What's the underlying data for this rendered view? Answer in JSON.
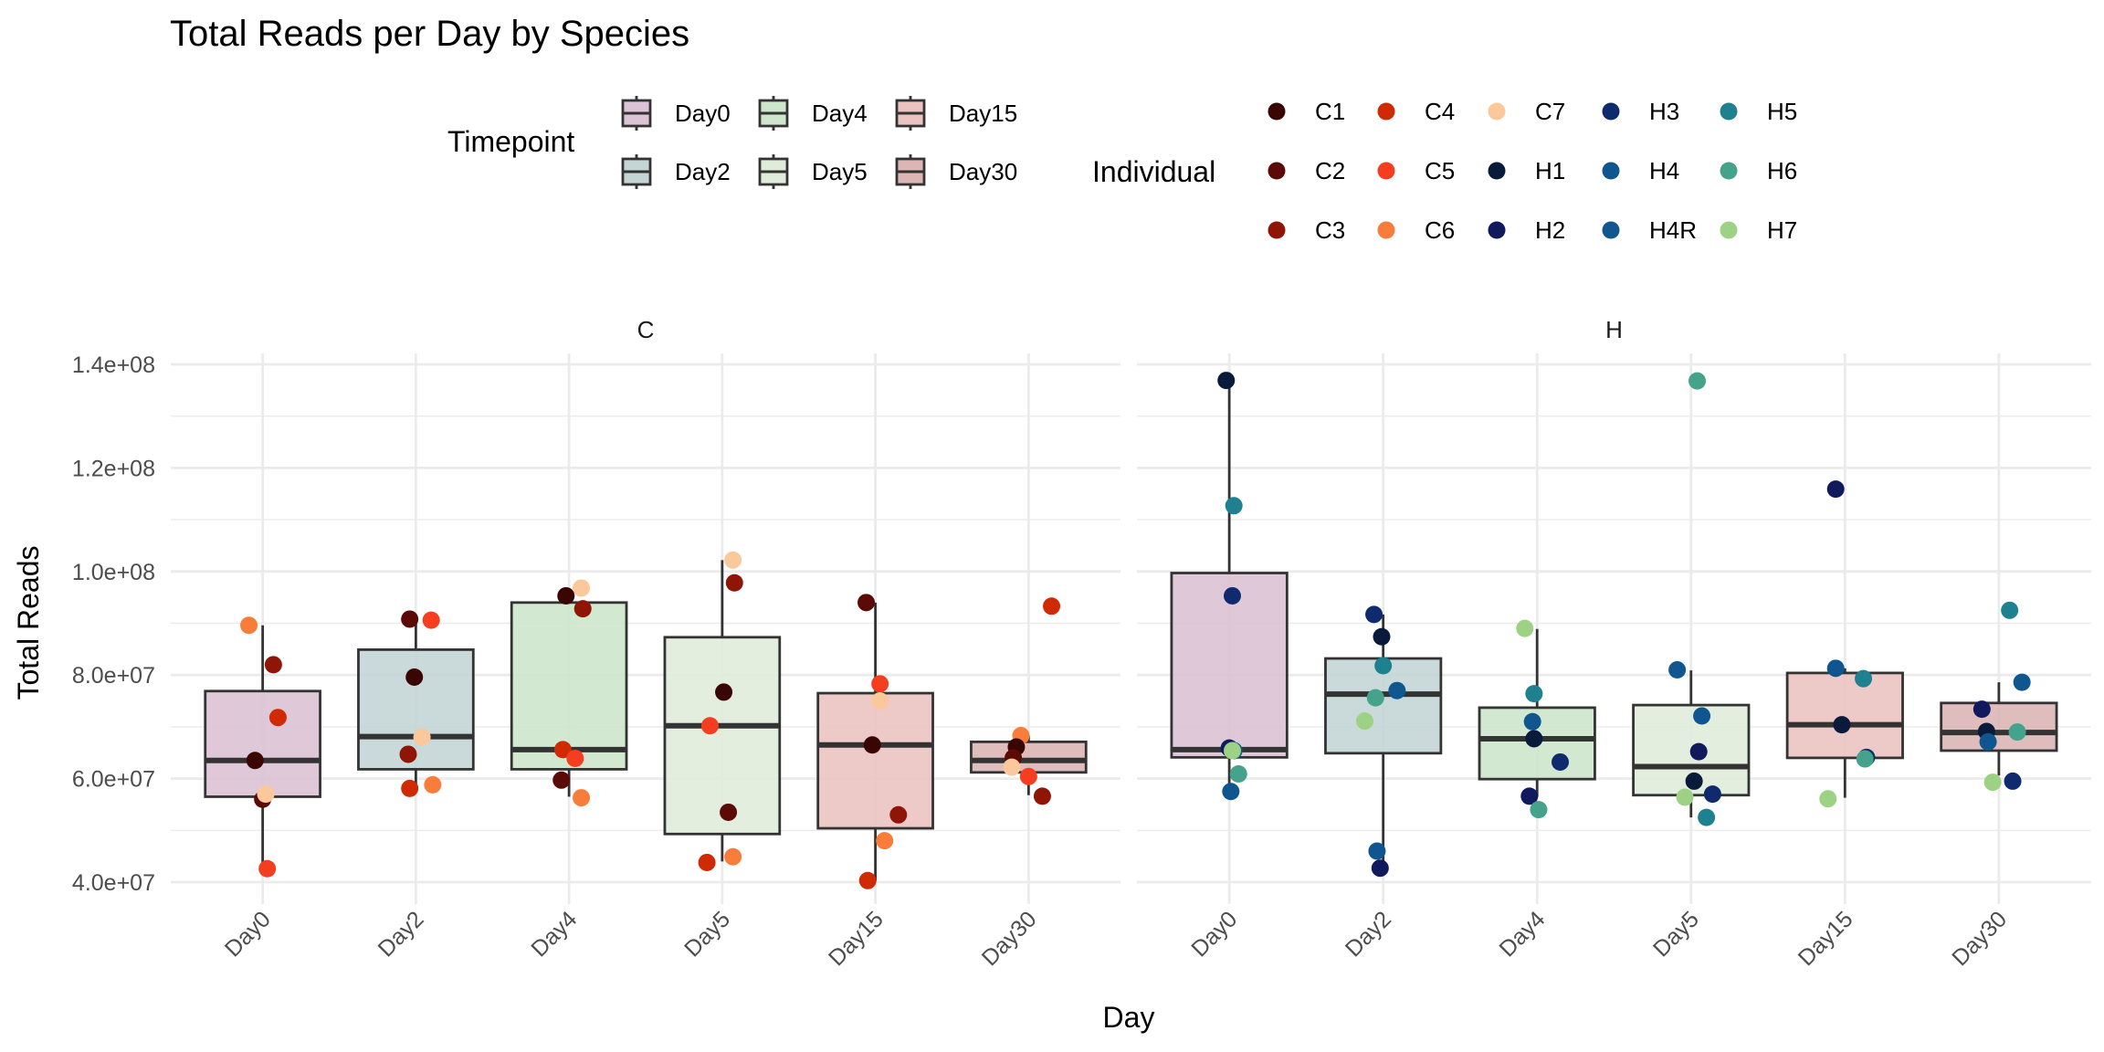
{
  "chart_data": {
    "type": "boxplot",
    "title": "Total Reads per Day by Species",
    "xlabel": "Day",
    "ylabel": "Total Reads",
    "ylim": [
      36000000,
      142000000
    ],
    "y_ticks": [
      40000000,
      60000000,
      80000000,
      100000000,
      120000000,
      140000000
    ],
    "y_tick_labels": [
      "4.0e+07",
      "6.0e+07",
      "8.0e+07",
      "1.0e+08",
      "1.2e+08",
      "1.4e+08"
    ],
    "grid": true,
    "categories": [
      "Day0",
      "Day2",
      "Day4",
      "Day5",
      "Day15",
      "Day30"
    ],
    "facets": [
      "C",
      "H"
    ],
    "legend_timepoint": {
      "title": "Timepoint",
      "placement": "top",
      "entries": [
        {
          "label": "Day0",
          "color": "#dcc3d5"
        },
        {
          "label": "Day2",
          "color": "#c4d5d6"
        },
        {
          "label": "Day4",
          "color": "#cee6cb"
        },
        {
          "label": "Day5",
          "color": "#e0ecda"
        },
        {
          "label": "Day15",
          "color": "#ebc4c2"
        },
        {
          "label": "Day30",
          "color": "#dbb6b5"
        }
      ]
    },
    "legend_individual": {
      "title": "Individual",
      "placement": "top",
      "entries": [
        {
          "label": "C1",
          "color": "#3a0603"
        },
        {
          "label": "C2",
          "color": "#5c0a05"
        },
        {
          "label": "C3",
          "color": "#8f1506"
        },
        {
          "label": "C4",
          "color": "#d02a04"
        },
        {
          "label": "C5",
          "color": "#f53e1f"
        },
        {
          "label": "C6",
          "color": "#f97d3a"
        },
        {
          "label": "C7",
          "color": "#fbc89b"
        },
        {
          "label": "H1",
          "color": "#0a1a3a"
        },
        {
          "label": "H2",
          "color": "#101a5c"
        },
        {
          "label": "H3",
          "color": "#0f2b6e"
        },
        {
          "label": "H4",
          "color": "#0f5690"
        },
        {
          "label": "H4R",
          "color": "#10568f"
        },
        {
          "label": "H5",
          "color": "#1f8090"
        },
        {
          "label": "H6",
          "color": "#46a38b"
        },
        {
          "label": "H7",
          "color": "#9dd285"
        }
      ]
    },
    "boxes": {
      "C": [
        {
          "day": "Day0",
          "lower": 42600000,
          "q1": 56500000,
          "median": 63500000,
          "q3": 76900000,
          "upper": 89600000
        },
        {
          "day": "Day2",
          "lower": 58100000,
          "q1": 61800000,
          "median": 68100000,
          "q3": 84900000,
          "upper": 90700000
        },
        {
          "day": "Day4",
          "lower": 56500000,
          "q1": 61800000,
          "median": 65600000,
          "q3": 94000000,
          "upper": 94000000
        },
        {
          "day": "Day5",
          "lower": 44000000,
          "q1": 49300000,
          "median": 70200000,
          "q3": 87300000,
          "upper": 102200000
        },
        {
          "day": "Day15",
          "lower": 40300000,
          "q1": 50400000,
          "median": 66500000,
          "q3": 76500000,
          "upper": 94000000
        },
        {
          "day": "Day30",
          "lower": 56800000,
          "q1": 61200000,
          "median": 63500000,
          "q3": 67100000,
          "upper": 68300000
        }
      ],
      "H": [
        {
          "day": "Day0",
          "lower": 57500000,
          "q1": 64100000,
          "median": 65600000,
          "q3": 99700000,
          "upper": 136900000
        },
        {
          "day": "Day2",
          "lower": 42800000,
          "q1": 64900000,
          "median": 76300000,
          "q3": 83200000,
          "upper": 91700000
        },
        {
          "day": "Day4",
          "lower": 56500000,
          "q1": 59900000,
          "median": 67700000,
          "q3": 73700000,
          "upper": 88900000
        },
        {
          "day": "Day5",
          "lower": 52500000,
          "q1": 56800000,
          "median": 62300000,
          "q3": 74200000,
          "upper": 80900000
        },
        {
          "day": "Day15",
          "lower": 56300000,
          "q1": 64000000,
          "median": 70400000,
          "q3": 80400000,
          "upper": 81300000
        },
        {
          "day": "Day30",
          "lower": 60600000,
          "q1": 65400000,
          "median": 68900000,
          "q3": 74600000,
          "upper": 78600000
        }
      ]
    },
    "points": {
      "C": [
        {
          "day": "Day0",
          "individual": "C6",
          "value": 89600000,
          "jitter": -0.09
        },
        {
          "day": "Day0",
          "individual": "C3",
          "value": 82000000,
          "jitter": 0.07
        },
        {
          "day": "Day0",
          "individual": "C4",
          "value": 71800000,
          "jitter": 0.1
        },
        {
          "day": "Day0",
          "individual": "C1",
          "value": 63500000,
          "jitter": -0.05
        },
        {
          "day": "Day0",
          "individual": "C2",
          "value": 56000000,
          "jitter": 0.0
        },
        {
          "day": "Day0",
          "individual": "C7",
          "value": 57000000,
          "jitter": 0.02
        },
        {
          "day": "Day0",
          "individual": "C5",
          "value": 42600000,
          "jitter": 0.03
        },
        {
          "day": "Day2",
          "individual": "C2",
          "value": 90800000,
          "jitter": -0.04
        },
        {
          "day": "Day2",
          "individual": "C5",
          "value": 90600000,
          "jitter": 0.1
        },
        {
          "day": "Day2",
          "individual": "C1",
          "value": 79600000,
          "jitter": -0.01
        },
        {
          "day": "Day2",
          "individual": "C7",
          "value": 68000000,
          "jitter": 0.04
        },
        {
          "day": "Day2",
          "individual": "C3",
          "value": 64700000,
          "jitter": -0.05
        },
        {
          "day": "Day2",
          "individual": "C6",
          "value": 58800000,
          "jitter": 0.11
        },
        {
          "day": "Day2",
          "individual": "C4",
          "value": 58100000,
          "jitter": -0.04
        },
        {
          "day": "Day4",
          "individual": "C7",
          "value": 96800000,
          "jitter": 0.08
        },
        {
          "day": "Day4",
          "individual": "C1",
          "value": 95300000,
          "jitter": -0.02
        },
        {
          "day": "Day4",
          "individual": "C3",
          "value": 92800000,
          "jitter": 0.09
        },
        {
          "day": "Day4",
          "individual": "C4",
          "value": 65600000,
          "jitter": -0.04
        },
        {
          "day": "Day4",
          "individual": "C5",
          "value": 63900000,
          "jitter": 0.04
        },
        {
          "day": "Day4",
          "individual": "C2",
          "value": 59700000,
          "jitter": -0.05
        },
        {
          "day": "Day4",
          "individual": "C6",
          "value": 56300000,
          "jitter": 0.08
        },
        {
          "day": "Day5",
          "individual": "C7",
          "value": 102200000,
          "jitter": 0.07
        },
        {
          "day": "Day5",
          "individual": "C3",
          "value": 97800000,
          "jitter": 0.08
        },
        {
          "day": "Day5",
          "individual": "C1",
          "value": 76700000,
          "jitter": 0.01
        },
        {
          "day": "Day5",
          "individual": "C5",
          "value": 70200000,
          "jitter": -0.08
        },
        {
          "day": "Day5",
          "individual": "C2",
          "value": 53500000,
          "jitter": 0.04
        },
        {
          "day": "Day5",
          "individual": "C6",
          "value": 44900000,
          "jitter": 0.07
        },
        {
          "day": "Day5",
          "individual": "C4",
          "value": 43800000,
          "jitter": -0.1
        },
        {
          "day": "Day15",
          "individual": "C2",
          "value": 94000000,
          "jitter": -0.06
        },
        {
          "day": "Day15",
          "individual": "C5",
          "value": 78300000,
          "jitter": 0.03
        },
        {
          "day": "Day15",
          "individual": "C7",
          "value": 75000000,
          "jitter": 0.03
        },
        {
          "day": "Day15",
          "individual": "C1",
          "value": 66500000,
          "jitter": -0.02
        },
        {
          "day": "Day15",
          "individual": "C3",
          "value": 53000000,
          "jitter": 0.15
        },
        {
          "day": "Day15",
          "individual": "C6",
          "value": 48000000,
          "jitter": 0.06
        },
        {
          "day": "Day15",
          "individual": "C4",
          "value": 40300000,
          "jitter": -0.05
        },
        {
          "day": "Day30",
          "individual": "C4",
          "value": 93300000,
          "jitter": 0.15
        },
        {
          "day": "Day30",
          "individual": "C6",
          "value": 68300000,
          "jitter": -0.05
        },
        {
          "day": "Day30",
          "individual": "C1",
          "value": 66100000,
          "jitter": -0.08
        },
        {
          "day": "Day30",
          "individual": "C2",
          "value": 64000000,
          "jitter": -0.1
        },
        {
          "day": "Day30",
          "individual": "C7",
          "value": 62200000,
          "jitter": -0.11
        },
        {
          "day": "Day30",
          "individual": "C5",
          "value": 60400000,
          "jitter": 0.0
        },
        {
          "day": "Day30",
          "individual": "C3",
          "value": 56600000,
          "jitter": 0.09
        }
      ],
      "H": [
        {
          "day": "Day0",
          "individual": "H1",
          "value": 136900000,
          "jitter": -0.02
        },
        {
          "day": "Day0",
          "individual": "H5",
          "value": 112700000,
          "jitter": 0.03
        },
        {
          "day": "Day0",
          "individual": "H3",
          "value": 95300000,
          "jitter": 0.02
        },
        {
          "day": "Day0",
          "individual": "H2",
          "value": 65900000,
          "jitter": 0.0
        },
        {
          "day": "Day0",
          "individual": "H4R",
          "value": 65400000,
          "jitter": 0.03
        },
        {
          "day": "Day0",
          "individual": "H7",
          "value": 65400000,
          "jitter": 0.02
        },
        {
          "day": "Day0",
          "individual": "H6",
          "value": 60900000,
          "jitter": 0.06
        },
        {
          "day": "Day0",
          "individual": "H4",
          "value": 57500000,
          "jitter": 0.01
        },
        {
          "day": "Day2",
          "individual": "H3",
          "value": 91700000,
          "jitter": -0.06
        },
        {
          "day": "Day2",
          "individual": "H1",
          "value": 87400000,
          "jitter": -0.01
        },
        {
          "day": "Day2",
          "individual": "H5",
          "value": 81800000,
          "jitter": 0.0
        },
        {
          "day": "Day2",
          "individual": "H4R",
          "value": 77000000,
          "jitter": 0.09
        },
        {
          "day": "Day2",
          "individual": "H6",
          "value": 75600000,
          "jitter": -0.05
        },
        {
          "day": "Day2",
          "individual": "H7",
          "value": 71100000,
          "jitter": -0.12
        },
        {
          "day": "Day2",
          "individual": "H4",
          "value": 46000000,
          "jitter": -0.04
        },
        {
          "day": "Day2",
          "individual": "H2",
          "value": 42700000,
          "jitter": -0.02
        },
        {
          "day": "Day4",
          "individual": "H7",
          "value": 89000000,
          "jitter": -0.08
        },
        {
          "day": "Day4",
          "individual": "H5",
          "value": 76400000,
          "jitter": -0.02
        },
        {
          "day": "Day4",
          "individual": "H4R",
          "value": 71000000,
          "jitter": -0.03
        },
        {
          "day": "Day4",
          "individual": "H1",
          "value": 67700000,
          "jitter": -0.02
        },
        {
          "day": "Day4",
          "individual": "H3",
          "value": 63200000,
          "jitter": 0.15
        },
        {
          "day": "Day4",
          "individual": "H2",
          "value": 56600000,
          "jitter": -0.05
        },
        {
          "day": "Day4",
          "individual": "H6",
          "value": 54000000,
          "jitter": 0.01
        },
        {
          "day": "Day5",
          "individual": "H6",
          "value": 136800000,
          "jitter": 0.04
        },
        {
          "day": "Day5",
          "individual": "H4R",
          "value": 81000000,
          "jitter": -0.09
        },
        {
          "day": "Day5",
          "individual": "H4",
          "value": 72100000,
          "jitter": 0.07
        },
        {
          "day": "Day5",
          "individual": "H2",
          "value": 65200000,
          "jitter": 0.05
        },
        {
          "day": "Day5",
          "individual": "H1",
          "value": 59500000,
          "jitter": 0.02
        },
        {
          "day": "Day5",
          "individual": "H3",
          "value": 57000000,
          "jitter": 0.14
        },
        {
          "day": "Day5",
          "individual": "H7",
          "value": 56400000,
          "jitter": -0.04
        },
        {
          "day": "Day5",
          "individual": "H5",
          "value": 52500000,
          "jitter": 0.1
        },
        {
          "day": "Day15",
          "individual": "H2",
          "value": 115900000,
          "jitter": -0.06
        },
        {
          "day": "Day15",
          "individual": "H4",
          "value": 81300000,
          "jitter": -0.06
        },
        {
          "day": "Day15",
          "individual": "H5",
          "value": 79300000,
          "jitter": 0.12
        },
        {
          "day": "Day15",
          "individual": "H1",
          "value": 70400000,
          "jitter": -0.02
        },
        {
          "day": "Day15",
          "individual": "H3",
          "value": 64100000,
          "jitter": 0.14
        },
        {
          "day": "Day15",
          "individual": "H6",
          "value": 63800000,
          "jitter": 0.13
        },
        {
          "day": "Day15",
          "individual": "H7",
          "value": 56100000,
          "jitter": -0.11
        },
        {
          "day": "Day30",
          "individual": "H5",
          "value": 92500000,
          "jitter": 0.07
        },
        {
          "day": "Day30",
          "individual": "H4R",
          "value": 78600000,
          "jitter": 0.15
        },
        {
          "day": "Day30",
          "individual": "H2",
          "value": 73400000,
          "jitter": -0.11
        },
        {
          "day": "Day30",
          "individual": "H1",
          "value": 69100000,
          "jitter": -0.08
        },
        {
          "day": "Day30",
          "individual": "H6",
          "value": 69000000,
          "jitter": 0.12
        },
        {
          "day": "Day30",
          "individual": "H4",
          "value": 67100000,
          "jitter": -0.07
        },
        {
          "day": "Day30",
          "individual": "H3",
          "value": 59500000,
          "jitter": 0.09
        },
        {
          "day": "Day30",
          "individual": "H7",
          "value": 59300000,
          "jitter": -0.04
        }
      ]
    }
  }
}
